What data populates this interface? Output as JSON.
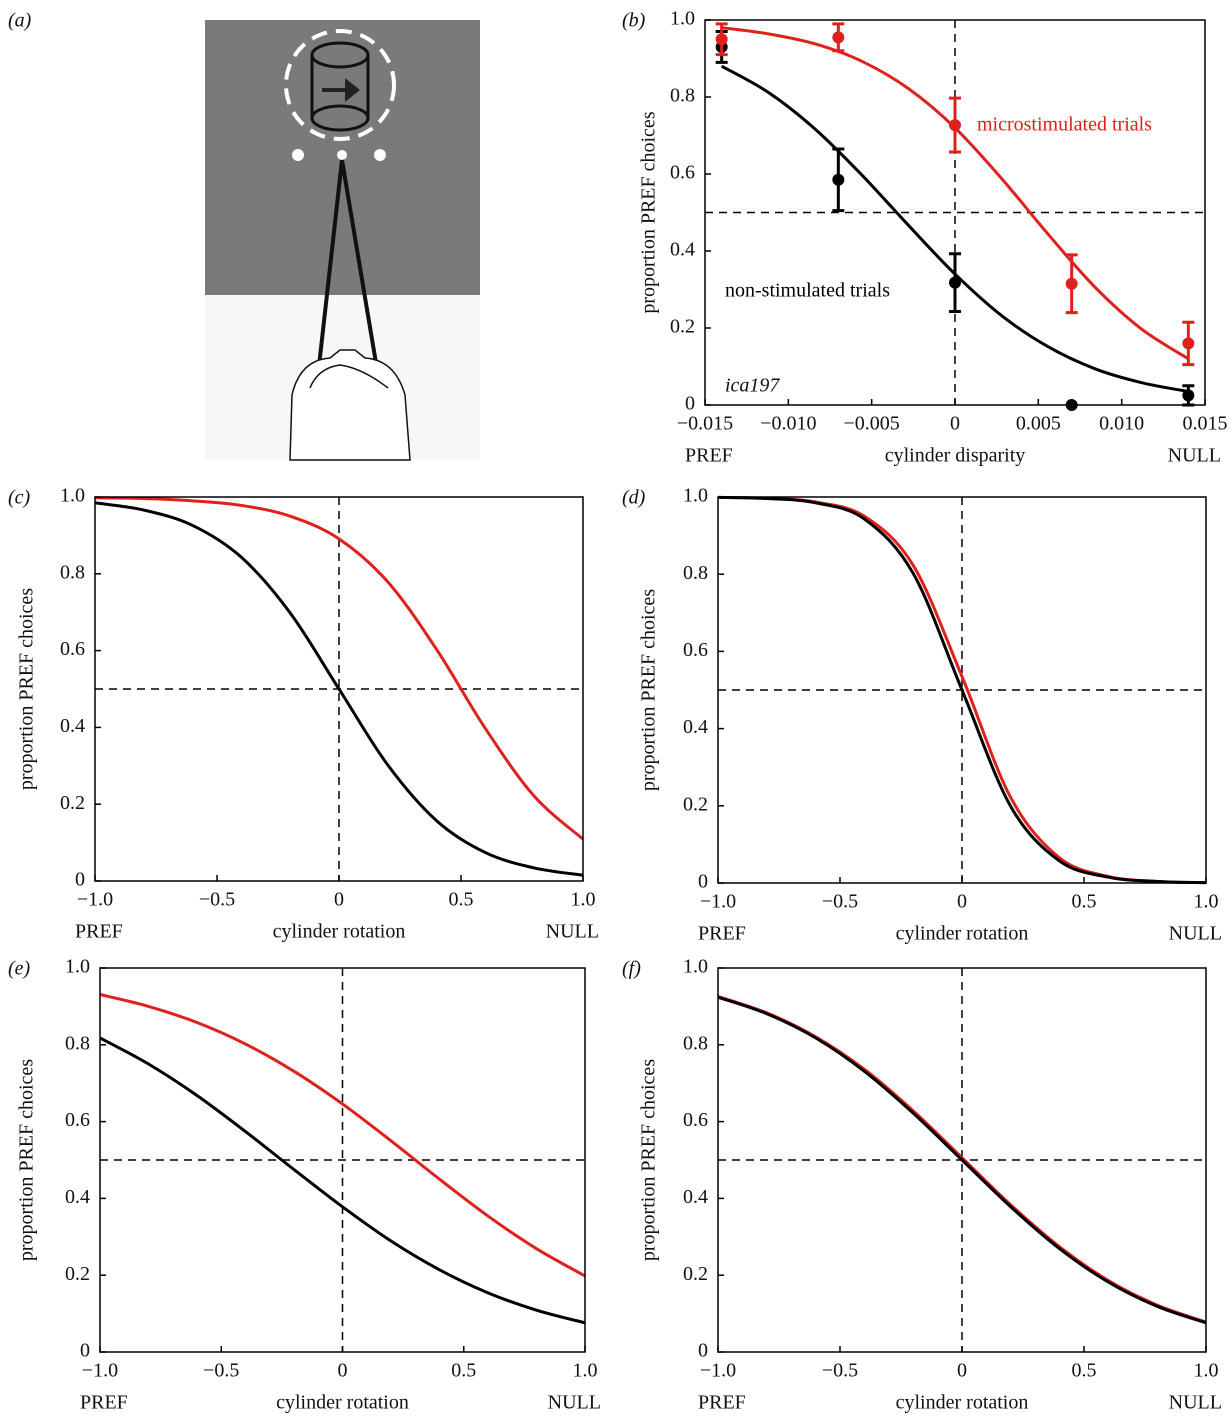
{
  "figure_a": {
    "label": "(a)"
  },
  "chart_data": [
    {
      "type": "line",
      "panel_label": "(b)",
      "xlabel": "cylinder disparity",
      "xlabel_left": "PREF",
      "xlabel_right": "NULL",
      "ylabel": "proportion PREF choices",
      "xlim": [
        -0.015,
        0.015
      ],
      "ylim": [
        0,
        1
      ],
      "xticks": [
        {
          "value": -0.015,
          "label": "−0.015"
        },
        {
          "value": -0.01,
          "label": "−0.010"
        },
        {
          "value": -0.005,
          "label": "−0.005"
        },
        0,
        0.005,
        {
          "value": 0.01,
          "label": "0.010"
        },
        0.015
      ],
      "yticks": [
        0,
        0.2,
        0.4,
        0.6,
        0.8,
        {
          "value": 1,
          "label": "1.0"
        }
      ],
      "hline": 0.5,
      "vline": 0,
      "annotations": [
        "ica197"
      ],
      "series": [
        {
          "name": "non-stimulated trials",
          "color": "#000000",
          "x": [
            -0.014,
            -0.0112,
            -0.0084,
            -0.0056,
            -0.0028,
            0,
            0.0028,
            0.0056,
            0.0084,
            0.0112,
            0.014
          ],
          "values": [
            0.88,
            0.812,
            0.717,
            0.598,
            0.467,
            0.34,
            0.232,
            0.151,
            0.094,
            0.058,
            0.035
          ],
          "points": {
            "x": [
              -0.014,
              -0.007,
              0,
              0.007,
              0.014
            ],
            "values": [
              0.93,
              0.585,
              0.318,
              0,
              0.025
            ],
            "errors": [
              0.04,
              0.08,
              0.075,
              0,
              0.025
            ]
          }
        },
        {
          "name": "microstimulated trials",
          "color": "#e0201b",
          "x": [
            -0.014,
            -0.0112,
            -0.0084,
            -0.0056,
            -0.0028,
            0,
            0.0028,
            0.0056,
            0.0084,
            0.0112,
            0.014
          ],
          "values": [
            0.98,
            0.964,
            0.938,
            0.893,
            0.822,
            0.72,
            0.588,
            0.443,
            0.306,
            0.197,
            0.12
          ],
          "points": {
            "x": [
              -0.014,
              -0.007,
              0,
              0.007,
              0.014
            ],
            "values": [
              0.95,
              0.955,
              0.727,
              0.315,
              0.16
            ],
            "errors": [
              0.04,
              0.035,
              0.07,
              0.075,
              0.055
            ]
          }
        }
      ]
    },
    {
      "type": "line",
      "panel_label": "(c)",
      "xlabel": "cylinder rotation",
      "xlabel_left": "PREF",
      "xlabel_right": "NULL",
      "ylabel": "proportion PREF choices",
      "xlim": [
        -1,
        1
      ],
      "ylim": [
        0,
        1
      ],
      "xticks": [
        {
          "value": -1,
          "label": "−1.0"
        },
        {
          "value": -0.5,
          "label": "−0.5"
        },
        0,
        0.5,
        {
          "value": 1,
          "label": "1.0"
        }
      ],
      "yticks": [
        0,
        0.2,
        0.4,
        0.6,
        0.8,
        {
          "value": 1,
          "label": "1.0"
        }
      ],
      "hline": 0.5,
      "vline": 0,
      "series": [
        {
          "color": "#000000",
          "x": [
            -1,
            -0.8,
            -0.6,
            -0.4,
            -0.2,
            0,
            0.2,
            0.4,
            0.6,
            0.8,
            1
          ],
          "values": [
            0.985,
            0.966,
            0.926,
            0.843,
            0.698,
            0.5,
            0.302,
            0.157,
            0.074,
            0.034,
            0.015
          ]
        },
        {
          "color": "#e0201b",
          "x": [
            -1,
            -0.8,
            -0.6,
            -0.4,
            -0.2,
            0,
            0.2,
            0.4,
            0.6,
            0.8,
            1
          ],
          "values": [
            0.998,
            0.996,
            0.99,
            0.978,
            0.95,
            0.891,
            0.779,
            0.603,
            0.397,
            0.221,
            0.109
          ]
        }
      ]
    },
    {
      "type": "line",
      "panel_label": "(d)",
      "xlabel": "cylinder rotation",
      "xlabel_left": "PREF",
      "xlabel_right": "NULL",
      "ylabel": "proportion PREF choices",
      "xlim": [
        -1,
        1
      ],
      "ylim": [
        0,
        1
      ],
      "xticks": [
        {
          "value": -1,
          "label": "−1.0"
        },
        {
          "value": -0.5,
          "label": "−0.5"
        },
        0,
        0.5,
        {
          "value": 1,
          "label": "1.0"
        }
      ],
      "yticks": [
        0,
        0.2,
        0.4,
        0.6,
        0.8,
        {
          "value": 1,
          "label": "1.0"
        }
      ],
      "hline": 0.5,
      "vline": 0,
      "series": [
        {
          "color": "#e0201b",
          "x": [
            -1,
            -0.8,
            -0.6,
            -0.4,
            -0.2,
            0,
            0.2,
            0.4,
            0.6,
            0.8,
            1
          ],
          "values": [
            0.999,
            0.997,
            0.987,
            0.95,
            0.823,
            0.535,
            0.221,
            0.065,
            0.017,
            0.004,
            0.001
          ]
        },
        {
          "color": "#000000",
          "x": [
            -1,
            -0.8,
            -0.6,
            -0.4,
            -0.2,
            0,
            0.2,
            0.4,
            0.6,
            0.8,
            1
          ],
          "values": [
            0.999,
            0.996,
            0.985,
            0.943,
            0.802,
            0.5,
            0.198,
            0.057,
            0.015,
            0.004,
            0.001
          ]
        }
      ]
    },
    {
      "type": "line",
      "panel_label": "(e)",
      "xlabel": "cylinder rotation",
      "xlabel_left": "PREF",
      "xlabel_right": "NULL",
      "ylabel": "proportion PREF choices",
      "xlim": [
        -1,
        1
      ],
      "ylim": [
        0,
        1
      ],
      "xticks": [
        {
          "value": -1,
          "label": "−1.0"
        },
        {
          "value": -0.5,
          "label": "−0.5"
        },
        0,
        0.5,
        {
          "value": 1,
          "label": "1.0"
        }
      ],
      "yticks": [
        0,
        0.2,
        0.4,
        0.6,
        0.8,
        {
          "value": 1,
          "label": "1.0"
        }
      ],
      "hline": 0.5,
      "vline": 0,
      "series": [
        {
          "color": "#000000",
          "x": [
            -1,
            -0.8,
            -0.6,
            -0.4,
            -0.2,
            0,
            0.2,
            0.4,
            0.6,
            0.8,
            1
          ],
          "values": [
            0.818,
            0.75,
            0.668,
            0.574,
            0.475,
            0.378,
            0.289,
            0.214,
            0.154,
            0.109,
            0.076
          ]
        },
        {
          "color": "#e0201b",
          "x": [
            -1,
            -0.8,
            -0.6,
            -0.4,
            -0.2,
            0,
            0.2,
            0.4,
            0.6,
            0.8,
            1
          ],
          "values": [
            0.931,
            0.9,
            0.858,
            0.802,
            0.731,
            0.646,
            0.55,
            0.45,
            0.354,
            0.269,
            0.198
          ]
        }
      ]
    },
    {
      "type": "line",
      "panel_label": "(f)",
      "xlabel": "cylinder rotation",
      "xlabel_left": "PREF",
      "xlabel_right": "NULL",
      "ylabel": "proportion PREF choices",
      "xlim": [
        -1,
        1
      ],
      "ylim": [
        0,
        1
      ],
      "xticks": [
        {
          "value": -1,
          "label": "−1.0"
        },
        {
          "value": -0.5,
          "label": "−0.5"
        },
        0,
        0.5,
        {
          "value": 1,
          "label": "1.0"
        }
      ],
      "yticks": [
        0,
        0.2,
        0.4,
        0.6,
        0.8,
        {
          "value": 1,
          "label": "1.0"
        }
      ],
      "hline": 0.5,
      "vline": 0,
      "series": [
        {
          "color": "#e0201b",
          "x": [
            -1,
            -0.8,
            -0.6,
            -0.4,
            -0.2,
            0,
            0.2,
            0.4,
            0.6,
            0.8,
            1
          ],
          "values": [
            0.926,
            0.883,
            0.821,
            0.736,
            0.628,
            0.506,
            0.383,
            0.274,
            0.186,
            0.122,
            0.078
          ]
        },
        {
          "color": "#000000",
          "x": [
            -1,
            -0.8,
            -0.6,
            -0.4,
            -0.2,
            0,
            0.2,
            0.4,
            0.6,
            0.8,
            1
          ],
          "values": [
            0.924,
            0.881,
            0.818,
            0.731,
            0.622,
            0.5,
            0.378,
            0.269,
            0.182,
            0.119,
            0.076
          ]
        }
      ]
    }
  ]
}
